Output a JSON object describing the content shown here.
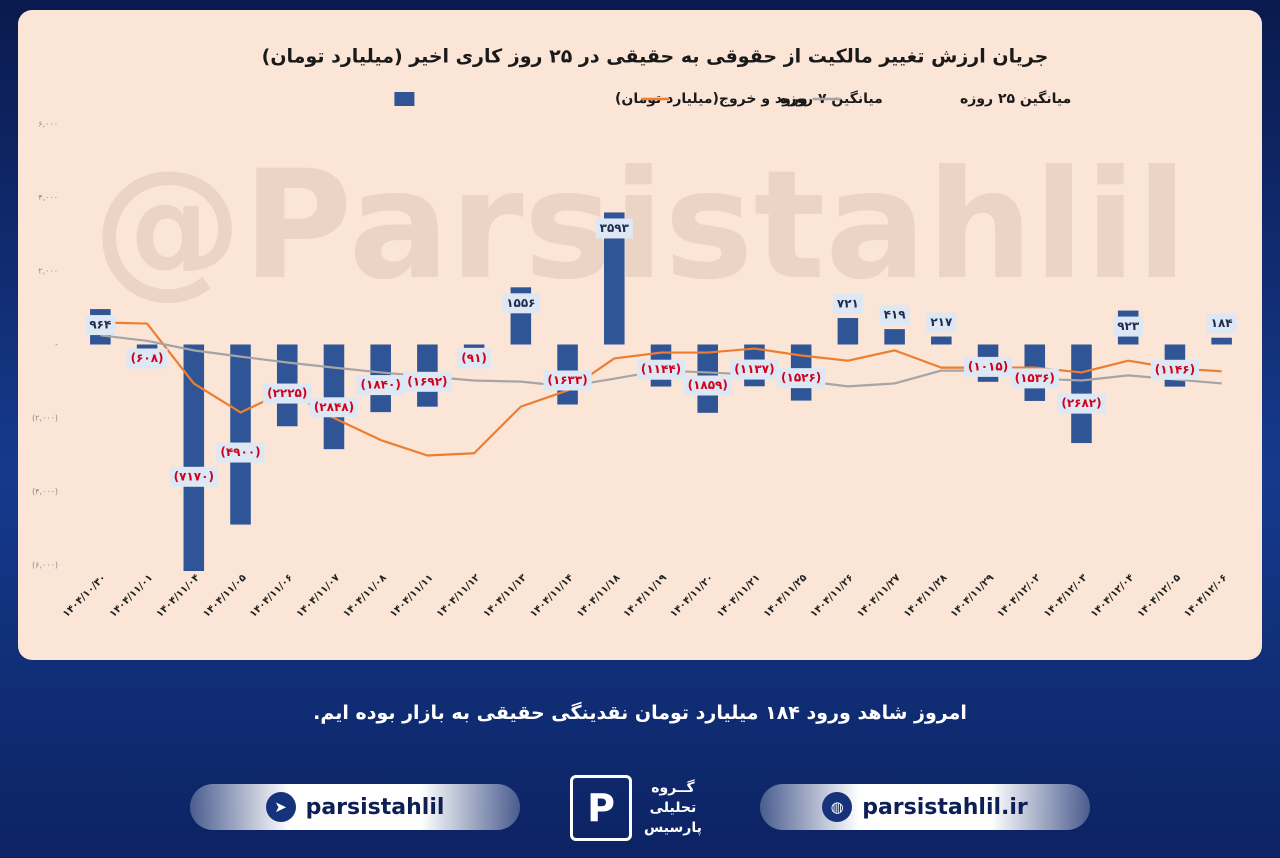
{
  "chart_data": {
    "type": "bar",
    "title": "جریان ارزش تغییر مالکیت از حقوقی به حقیقی در ۲۵ روز کاری اخیر (میلیارد تومان)",
    "categories": [
      "۱۴۰۴/۱۰/۳۰",
      "۱۴۰۴/۱۱/۰۱",
      "۱۴۰۴/۱۱/۰۴",
      "۱۴۰۴/۱۱/۰۵",
      "۱۴۰۴/۱۱/۰۶",
      "۱۴۰۴/۱۱/۰۷",
      "۱۴۰۴/۱۱/۰۸",
      "۱۴۰۴/۱۱/۱۱",
      "۱۴۰۴/۱۱/۱۲",
      "۱۴۰۴/۱۱/۱۳",
      "۱۴۰۴/۱۱/۱۴",
      "۱۴۰۴/۱۱/۱۸",
      "۱۴۰۴/۱۱/۱۹",
      "۱۴۰۴/۱۱/۲۰",
      "۱۴۰۴/۱۱/۲۱",
      "۱۴۰۴/۱۱/۲۵",
      "۱۴۰۴/۱۱/۲۶",
      "۱۴۰۴/۱۱/۲۷",
      "۱۴۰۴/۱۱/۲۸",
      "۱۴۰۴/۱۱/۲۹",
      "۱۴۰۴/۱۲/۰۲",
      "۱۴۰۴/۱۲/۰۳",
      "۱۴۰۴/۱۲/۰۴",
      "۱۴۰۴/۱۲/۰۵",
      "۱۴۰۴/۱۲/۰۶"
    ],
    "series": [
      {
        "name": "ورود و خروج(میلیارد تومان)",
        "type": "bar",
        "color": "#2f5597",
        "values": [
          964,
          -608,
          -7170,
          -4900,
          -2225,
          -2848,
          -1840,
          -1692,
          -91,
          1556,
          -1633,
          3593,
          -1144,
          -1859,
          -1137,
          -1526,
          721,
          419,
          217,
          -1015,
          -1536,
          -2682,
          923,
          -1146,
          184
        ],
        "value_labels": [
          "۹۶۴",
          "(۶۰۸)",
          "(۷۱۷۰)",
          "(۴۹۰۰)",
          "(۲۲۲۵)",
          "(۲۸۴۸)",
          "(۱۸۴۰)",
          "(۱۶۹۲)",
          "(۹۱)",
          "۱۵۵۶",
          "(۱۶۳۳)",
          "۳۵۹۳",
          "(۱۱۴۴)",
          "(۱۸۵۹)",
          "(۱۱۳۷)",
          "(۱۵۲۶)",
          "۷۲۱",
          "۴۱۹",
          "۲۱۷",
          "(۱۰۱۵)",
          "(۱۵۳۶)",
          "(۲۶۸۲)",
          "۹۲۳",
          "(۱۱۴۶)",
          "۱۸۴"
        ]
      },
      {
        "name": "میانگین ۷ روزه",
        "type": "line",
        "color": "#ed7d31",
        "values": [
          600,
          570,
          -1060,
          -1850,
          -1250,
          -2000,
          -2600,
          -3020,
          -2960,
          -1690,
          -1250,
          -380,
          -220,
          -220,
          -110,
          -300,
          -440,
          -160,
          -630,
          -630,
          -630,
          -760,
          -440,
          -650,
          -730
        ]
      },
      {
        "name": "میانگین ۲۵ روزه",
        "type": "line",
        "color": "#a5a5a5",
        "values": [
          250,
          100,
          -160,
          -330,
          -490,
          -630,
          -760,
          -870,
          -980,
          -1010,
          -1140,
          -930,
          -710,
          -760,
          -820,
          -980,
          -1140,
          -1060,
          -710,
          -710,
          -930,
          -980,
          -840,
          -950,
          -1060
        ]
      }
    ],
    "ylim": [
      -6000,
      6000
    ],
    "yticks": [
      {
        "value": 6000,
        "label": "۶,۰۰۰"
      },
      {
        "value": 4000,
        "label": "۴,۰۰۰"
      },
      {
        "value": 2000,
        "label": "۲,۰۰۰"
      },
      {
        "value": 0,
        "label": "-"
      },
      {
        "value": -2000,
        "label": "(۲,۰۰۰)"
      },
      {
        "value": -4000,
        "label": "(۴,۰۰۰)"
      },
      {
        "value": -6000,
        "label": "(۶,۰۰۰)"
      }
    ],
    "grid": false,
    "legend": "top"
  },
  "watermark": "@Parsistahlil",
  "caption": "امروز شاهد ورود ۱۸۴ میلیارد تومان نقدینگی حقیقی به بازار بوده ایم.",
  "footer": {
    "telegram": "parsistahlil",
    "website": "parsistahlil.ir",
    "logo_mark": "P",
    "logo_text": [
      "گــروه",
      "تحلیلی",
      "پارسیس"
    ]
  }
}
